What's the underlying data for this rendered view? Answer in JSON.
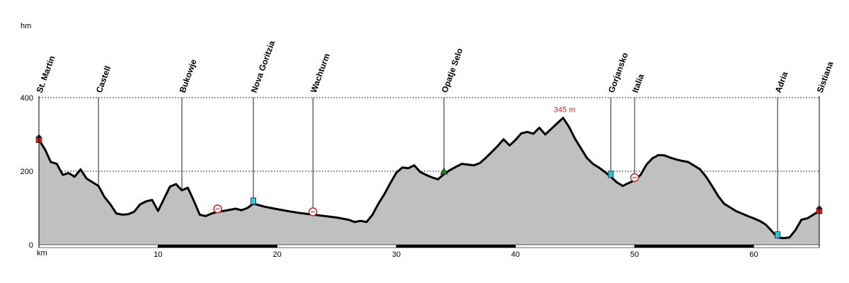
{
  "chart_data": {
    "type": "area",
    "ylabel": "hm",
    "xlabel": "km",
    "xlim": [
      0,
      65.5
    ],
    "ylim": [
      0,
      400
    ],
    "x_ticks": [
      10,
      20,
      30,
      40,
      50,
      60
    ],
    "y_ticks": [
      0,
      200,
      400
    ],
    "grid": "horizontal-dotted",
    "colors": {
      "fill": "#c0c0c0",
      "line": "#000000",
      "peak_label": "#c0262d",
      "start_marker": "#e02020",
      "water_marker": "#30c8c8",
      "pass_marker": "#208020"
    },
    "places": [
      {
        "name": "St. Martin",
        "km": 0.0,
        "marker": "house"
      },
      {
        "name": "Castell",
        "km": 5.0,
        "marker": ""
      },
      {
        "name": "Bukowje",
        "km": 12.0,
        "marker": ""
      },
      {
        "name": "Nova Goritzia",
        "km": 18.0,
        "marker": "water"
      },
      {
        "name": "Wachturm",
        "km": 23.0,
        "marker": "food"
      },
      {
        "name": "Opatje Selo",
        "km": 34.0,
        "marker": "pass"
      },
      {
        "name": "Gorjansko",
        "km": 48.0,
        "marker": "water"
      },
      {
        "name": "Italia",
        "km": 50.0,
        "marker": "food"
      },
      {
        "name": "Adria",
        "km": 62.0,
        "marker": "water"
      },
      {
        "name": "Sistiana",
        "km": 65.5,
        "marker": "house"
      }
    ],
    "extra_markers": [
      {
        "km": 15.0,
        "marker": "food"
      }
    ],
    "peak": {
      "km": 44.0,
      "elevation": 345,
      "label": "345 m"
    },
    "profile": {
      "x": [
        0,
        0.5,
        1,
        1.5,
        2,
        2.5,
        3,
        3.5,
        4,
        4.5,
        5,
        5.5,
        6,
        6.5,
        7,
        7.5,
        8,
        8.5,
        9,
        9.5,
        10,
        10.5,
        11,
        11.5,
        12,
        12.5,
        13,
        13.5,
        14,
        14.5,
        15,
        15.5,
        16,
        16.5,
        17,
        17.5,
        18,
        19,
        20,
        21,
        22,
        23,
        24,
        25,
        26,
        26.5,
        27,
        27.5,
        28,
        28.5,
        29,
        29.5,
        30,
        30.5,
        31,
        31.5,
        32,
        32.5,
        33,
        33.5,
        34,
        34.5,
        35,
        35.5,
        36,
        36.5,
        37,
        37.5,
        38,
        38.5,
        39,
        39.5,
        40,
        40.5,
        41,
        41.5,
        42,
        42.5,
        43,
        43.5,
        44,
        44.5,
        45,
        45.5,
        46,
        46.5,
        47,
        47.5,
        48,
        48.5,
        49,
        49.5,
        50,
        50.5,
        51,
        51.5,
        52,
        52.5,
        53,
        53.5,
        54,
        54.5,
        55,
        55.5,
        56,
        56.5,
        57,
        57.5,
        58,
        58.5,
        59,
        59.5,
        60,
        60.5,
        61,
        61.5,
        62,
        62.5,
        63,
        63.5,
        64,
        64.5,
        65,
        65.5
      ],
      "y": [
        285,
        260,
        225,
        220,
        190,
        195,
        185,
        205,
        180,
        170,
        160,
        130,
        110,
        85,
        82,
        83,
        90,
        110,
        118,
        122,
        92,
        125,
        158,
        165,
        148,
        155,
        120,
        82,
        78,
        85,
        90,
        92,
        95,
        98,
        94,
        100,
        112,
        103,
        97,
        91,
        86,
        82,
        78,
        74,
        68,
        62,
        65,
        62,
        82,
        112,
        138,
        168,
        196,
        210,
        208,
        216,
        198,
        190,
        183,
        178,
        192,
        203,
        212,
        220,
        218,
        216,
        222,
        236,
        252,
        268,
        287,
        270,
        285,
        303,
        307,
        302,
        318,
        300,
        315,
        330,
        345,
        320,
        288,
        262,
        236,
        220,
        210,
        198,
        185,
        170,
        160,
        168,
        175,
        190,
        218,
        235,
        244,
        243,
        237,
        232,
        228,
        225,
        215,
        205,
        185,
        160,
        133,
        112,
        102,
        92,
        85,
        78,
        72,
        65,
        55,
        38,
        20,
        18,
        20,
        40,
        68,
        72,
        82,
        92
      ]
    }
  }
}
